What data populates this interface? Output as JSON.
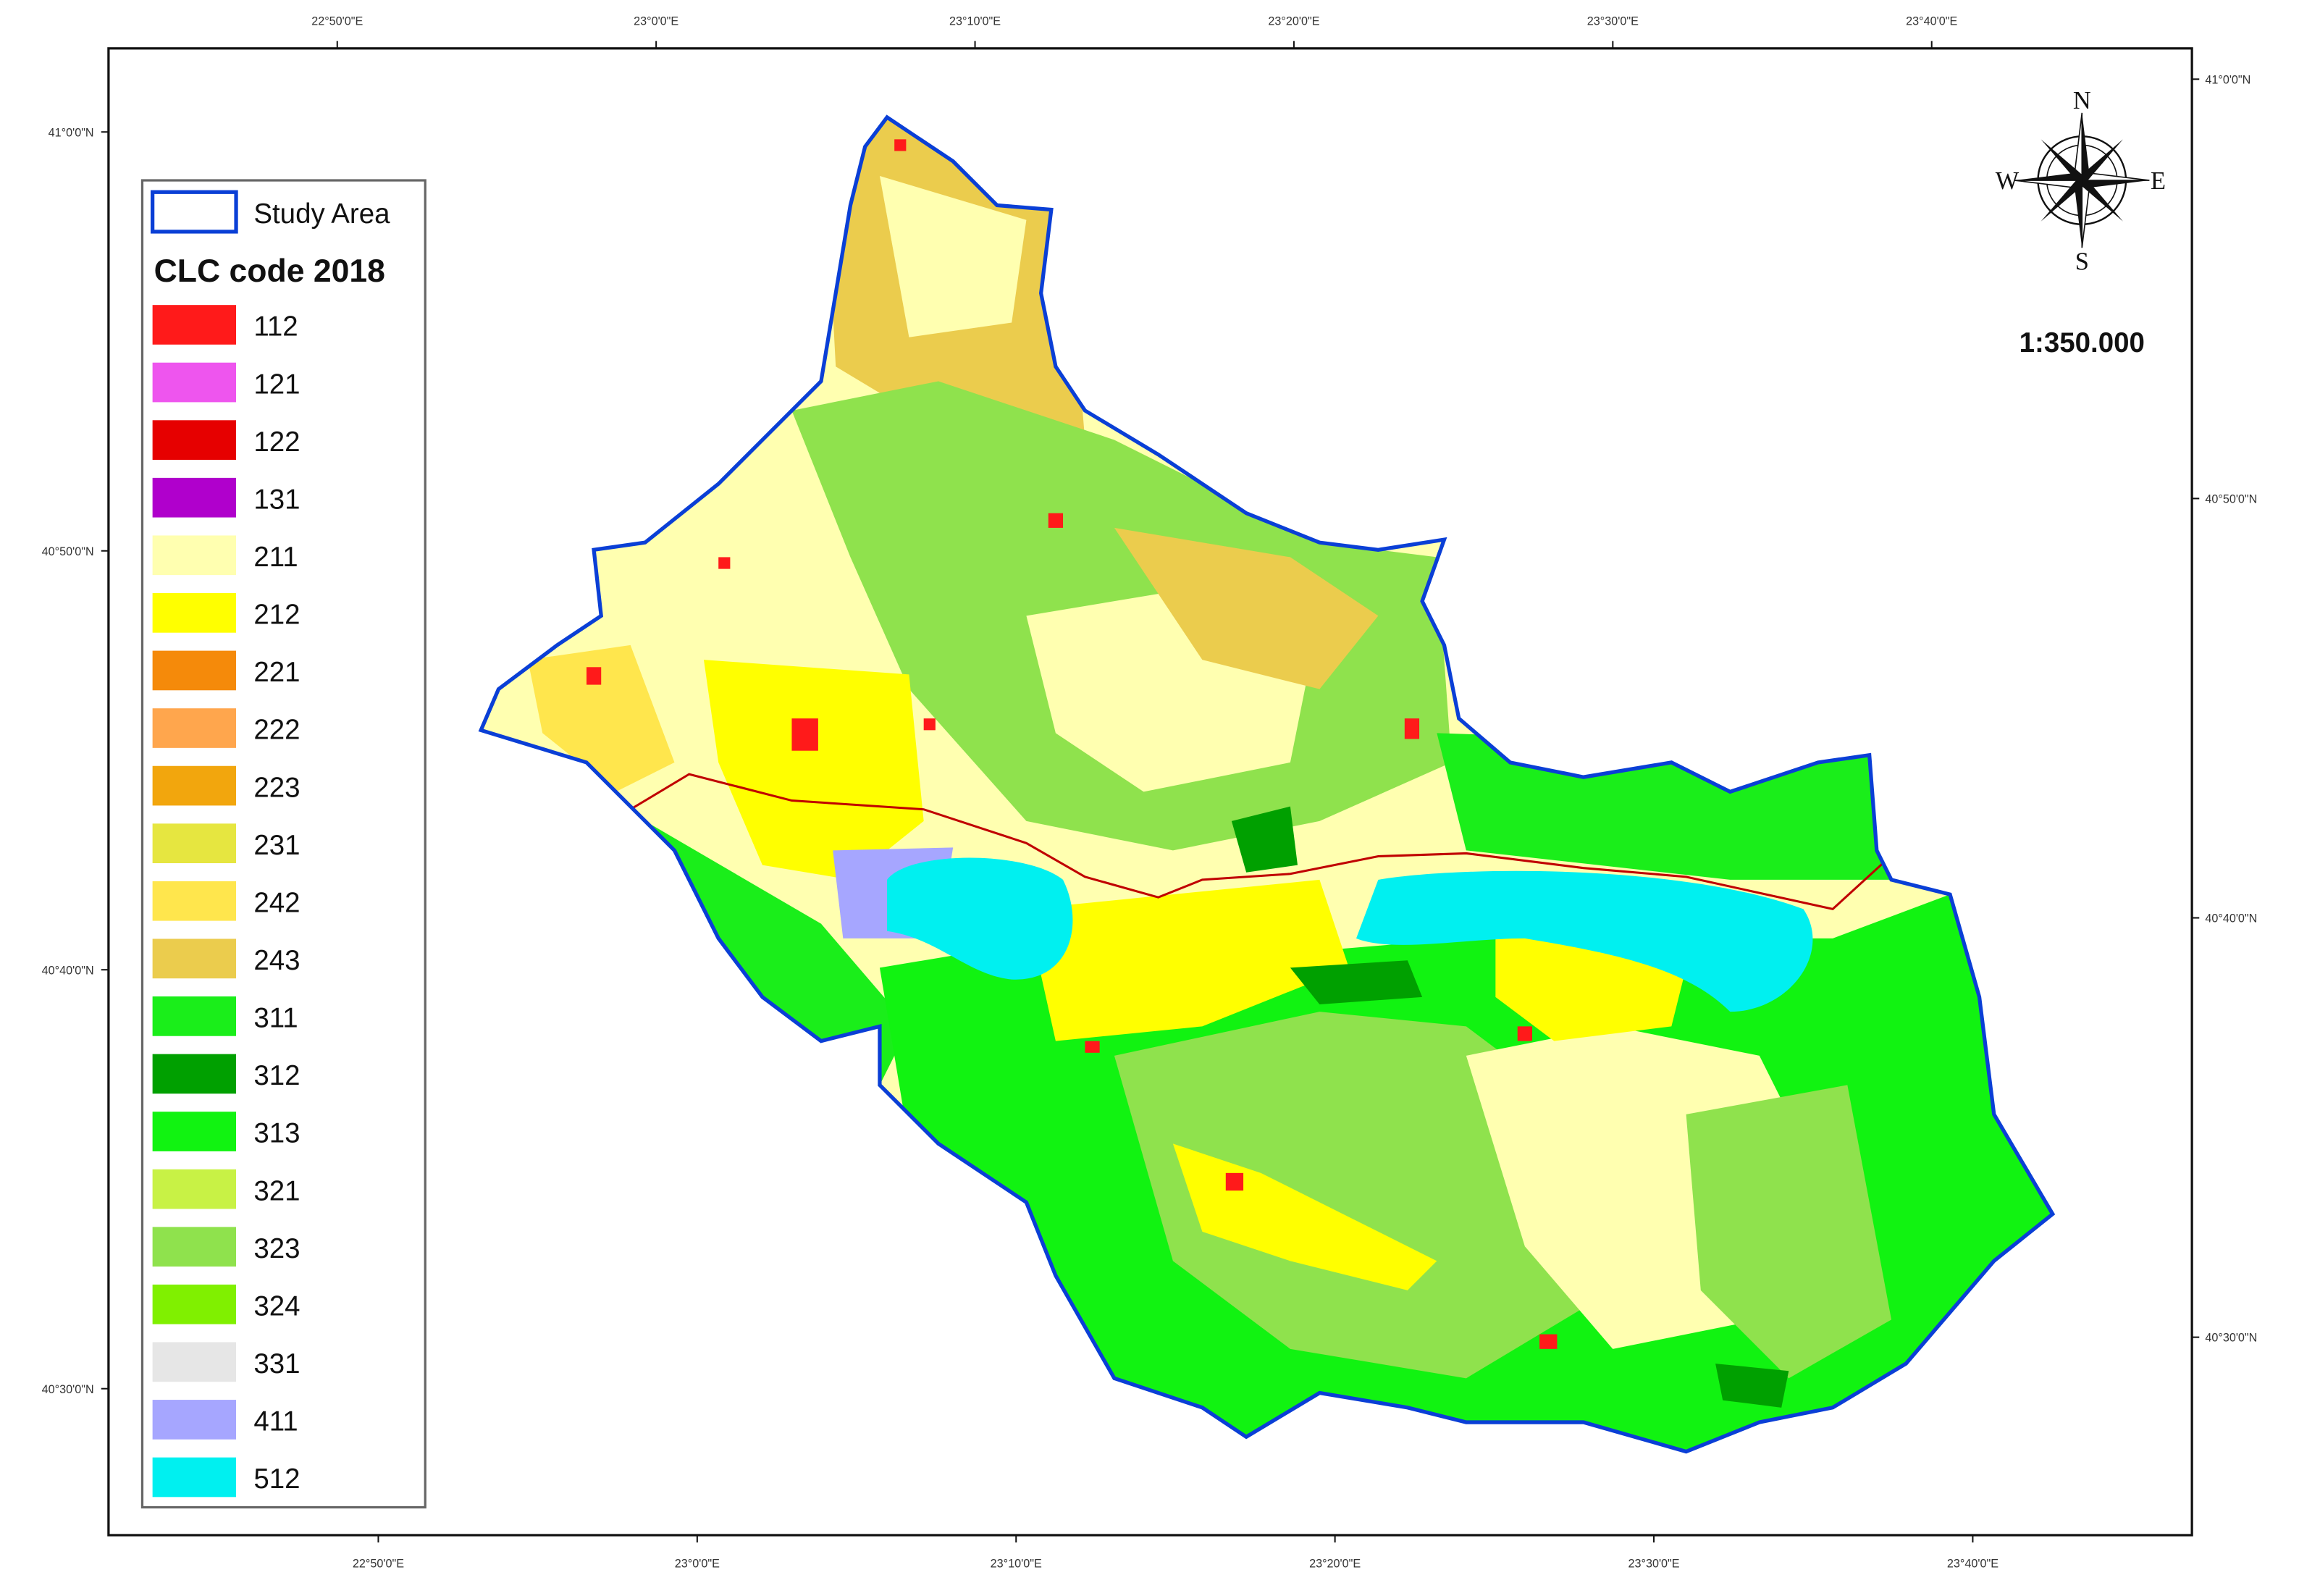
{
  "map": {
    "longitude_labels_top": [
      "22°50'0\"E",
      "23°0'0\"E",
      "23°10'0\"E",
      "23°20'0\"E",
      "23°30'0\"E",
      "23°40'0\"E"
    ],
    "longitude_labels_bottom": [
      "22°50'0\"E",
      "23°0'0\"E",
      "23°10'0\"E",
      "23°20'0\"E",
      "23°30'0\"E",
      "23°40'0\"E"
    ],
    "latitude_labels_left": [
      "41°0'0\"N",
      "40°50'0\"N",
      "40°40'0\"N",
      "40°30'0\"N"
    ],
    "latitude_labels_right": [
      "41°0'0\"N",
      "40°50'0\"N",
      "40°40'0\"N",
      "40°30'0\"N"
    ],
    "legend": {
      "study_area": "Study Area",
      "title": "CLC code 2018",
      "items": [
        {
          "code": "112",
          "color": "#ff1a1a"
        },
        {
          "code": "121",
          "color": "#ee55ee"
        },
        {
          "code": "122",
          "color": "#e60000"
        },
        {
          "code": "131",
          "color": "#b000cc"
        },
        {
          "code": "211",
          "color": "#ffffb0"
        },
        {
          "code": "212",
          "color": "#ffff00"
        },
        {
          "code": "221",
          "color": "#f58a0a"
        },
        {
          "code": "222",
          "color": "#ffa64d"
        },
        {
          "code": "223",
          "color": "#f2a60d"
        },
        {
          "code": "231",
          "color": "#e6e640"
        },
        {
          "code": "242",
          "color": "#ffe64d"
        },
        {
          "code": "243",
          "color": "#ebcc4d"
        },
        {
          "code": "311",
          "color": "#1aee1a"
        },
        {
          "code": "312",
          "color": "#00a000"
        },
        {
          "code": "313",
          "color": "#11f311"
        },
        {
          "code": "321",
          "color": "#c8f245"
        },
        {
          "code": "323",
          "color": "#8fe24d"
        },
        {
          "code": "324",
          "color": "#80f000"
        },
        {
          "code": "331",
          "color": "#e6e6e6"
        },
        {
          "code": "411",
          "color": "#a6a6ff"
        },
        {
          "code": "512",
          "color": "#00f0f0"
        }
      ]
    },
    "compass": {
      "north": "N",
      "west": "W",
      "east": "E",
      "south": "S"
    },
    "scale": "1:350.000"
  }
}
